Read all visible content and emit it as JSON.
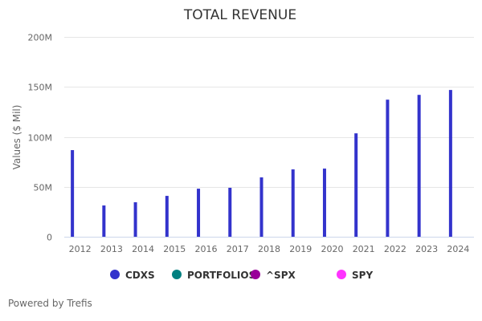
{
  "chart_data": {
    "type": "bar",
    "title": "TOTAL REVENUE",
    "xlabel": "",
    "ylabel": "Values ($ Mil)",
    "ylim": [
      0,
      200
    ],
    "yticks": [
      0,
      50,
      100,
      150,
      200
    ],
    "ytick_labels": [
      "0",
      "50M",
      "100M",
      "150M",
      "200M"
    ],
    "grid": true,
    "legend_position": "bottom",
    "categories": [
      "2012",
      "2013",
      "2014",
      "2015",
      "2016",
      "2017",
      "2018",
      "2019",
      "2020",
      "2021",
      "2022",
      "2023",
      "2024"
    ],
    "series": [
      {
        "name": "CDXS",
        "color": "#3333cc",
        "values": [
          86.7,
          31.3,
          34.5,
          40.9,
          48.1,
          49.0,
          59.4,
          67.4,
          68.2,
          103.5,
          137.2,
          142.0,
          146.9
        ]
      },
      {
        "name": "PORTFOLIOS",
        "color": "#008080",
        "values": []
      },
      {
        "name": "^SPX",
        "color": "#990099",
        "values": []
      },
      {
        "name": "SPY",
        "color": "#ff33ff",
        "values": []
      }
    ]
  },
  "credit": "Powered by Trefis"
}
